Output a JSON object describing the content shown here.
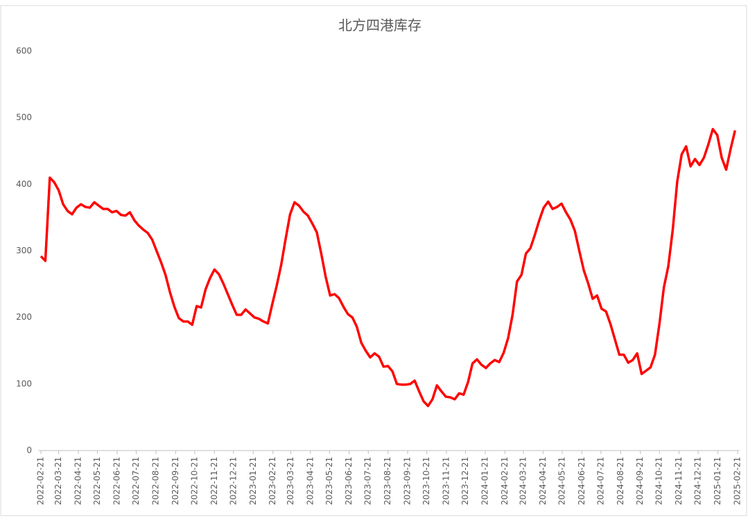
{
  "chart_data": {
    "type": "line",
    "title": "北方四港库存",
    "color": "#ff0000",
    "x": [
      "2022-02-21",
      "2022-02-28",
      "2022-03-07",
      "2022-03-14",
      "2022-03-21",
      "2022-03-28",
      "2022-04-04",
      "2022-04-11",
      "2022-04-18",
      "2022-04-25",
      "2022-05-02",
      "2022-05-09",
      "2022-05-16",
      "2022-05-23",
      "2022-05-30",
      "2022-06-06",
      "2022-06-13",
      "2022-06-20",
      "2022-06-27",
      "2022-07-04",
      "2022-07-11",
      "2022-07-18",
      "2022-07-25",
      "2022-08-01",
      "2022-08-08",
      "2022-08-15",
      "2022-08-22",
      "2022-08-29",
      "2022-09-05",
      "2022-09-12",
      "2022-09-19",
      "2022-09-26",
      "2022-10-03",
      "2022-10-10",
      "2022-10-17",
      "2022-10-24",
      "2022-10-31",
      "2022-11-07",
      "2022-11-14",
      "2022-11-21",
      "2022-11-28",
      "2022-12-05",
      "2022-12-12",
      "2022-12-19",
      "2022-12-26",
      "2023-01-02",
      "2023-01-09",
      "2023-01-16",
      "2023-01-23",
      "2023-01-30",
      "2023-02-06",
      "2023-02-13",
      "2023-02-20",
      "2023-02-27",
      "2023-03-06",
      "2023-03-13",
      "2023-03-20",
      "2023-03-27",
      "2023-04-03",
      "2023-04-10",
      "2023-04-17",
      "2023-04-24",
      "2023-05-01",
      "2023-05-08",
      "2023-05-15",
      "2023-05-22",
      "2023-05-29",
      "2023-06-05",
      "2023-06-12",
      "2023-06-19",
      "2023-06-26",
      "2023-07-03",
      "2023-07-10",
      "2023-07-17",
      "2023-07-24",
      "2023-07-31",
      "2023-08-07",
      "2023-08-14",
      "2023-08-21",
      "2023-08-28",
      "2023-09-04",
      "2023-09-11",
      "2023-09-18",
      "2023-09-25",
      "2023-10-02",
      "2023-10-09",
      "2023-10-16",
      "2023-10-23",
      "2023-10-30",
      "2023-11-06",
      "2023-11-13",
      "2023-11-20",
      "2023-11-27",
      "2023-12-04",
      "2023-12-11",
      "2023-12-18",
      "2023-12-25",
      "2024-01-01",
      "2024-01-08",
      "2024-01-15",
      "2024-01-22",
      "2024-01-29",
      "2024-02-05",
      "2024-02-12",
      "2024-02-19",
      "2024-02-26",
      "2024-03-04",
      "2024-03-11",
      "2024-03-18",
      "2024-03-25",
      "2024-04-01",
      "2024-04-08",
      "2024-04-15",
      "2024-04-22",
      "2024-04-29",
      "2024-05-06",
      "2024-05-13",
      "2024-05-20",
      "2024-05-27",
      "2024-06-03",
      "2024-06-10",
      "2024-06-17",
      "2024-06-24",
      "2024-07-01",
      "2024-07-08",
      "2024-07-15",
      "2024-07-22",
      "2024-07-29",
      "2024-08-05",
      "2024-08-12",
      "2024-08-19",
      "2024-08-26",
      "2024-09-02",
      "2024-09-09",
      "2024-09-16",
      "2024-09-23",
      "2024-09-30",
      "2024-10-07",
      "2024-10-14",
      "2024-10-21",
      "2024-10-28",
      "2024-11-04",
      "2024-11-11",
      "2024-11-18",
      "2024-11-25",
      "2024-12-02",
      "2024-12-09",
      "2024-12-16",
      "2024-12-23",
      "2024-12-30",
      "2025-01-06",
      "2025-01-13",
      "2025-01-20",
      "2025-01-27",
      "2025-02-03",
      "2025-02-10",
      "2025-02-17"
    ],
    "values": [
      292,
      285,
      410,
      403,
      391,
      370,
      360,
      355,
      365,
      370,
      366,
      365,
      373,
      368,
      363,
      363,
      358,
      360,
      354,
      353,
      358,
      346,
      338,
      332,
      327,
      317,
      300,
      283,
      264,
      238,
      216,
      199,
      194,
      194,
      189,
      217,
      215,
      242,
      259,
      272,
      265,
      251,
      235,
      219,
      204,
      204,
      212,
      206,
      200,
      198,
      194,
      191,
      220,
      248,
      279,
      318,
      355,
      373,
      368,
      359,
      353,
      341,
      328,
      296,
      261,
      233,
      235,
      229,
      216,
      205,
      200,
      186,
      162,
      150,
      140,
      146,
      141,
      126,
      127,
      119,
      100,
      99,
      99,
      100,
      105,
      89,
      74,
      67,
      77,
      98,
      89,
      81,
      80,
      77,
      86,
      84,
      103,
      131,
      137,
      129,
      124,
      131,
      136,
      133,
      147,
      169,
      204,
      254,
      264,
      296,
      304,
      324,
      346,
      365,
      374,
      363,
      366,
      371,
      358,
      347,
      330,
      300,
      271,
      251,
      228,
      233,
      213,
      209,
      190,
      167,
      144,
      144,
      132,
      136,
      146,
      115,
      120,
      125,
      144,
      190,
      245,
      277,
      332,
      404,
      445,
      457,
      427,
      438,
      429,
      440,
      460,
      483,
      474,
      440,
      422,
      453,
      481
    ],
    "xlim": [
      "2022-02-21",
      "2025-02-21"
    ],
    "xticks": [
      "2022-02-21",
      "2022-03-21",
      "2022-04-21",
      "2022-05-21",
      "2022-06-21",
      "2022-07-21",
      "2022-08-21",
      "2022-09-21",
      "2022-10-21",
      "2022-11-21",
      "2022-12-21",
      "2023-01-21",
      "2023-02-21",
      "2023-03-21",
      "2023-04-21",
      "2023-05-21",
      "2023-06-21",
      "2023-07-21",
      "2023-08-21",
      "2023-09-21",
      "2023-10-21",
      "2023-11-21",
      "2023-12-21",
      "2024-01-21",
      "2024-02-21",
      "2024-03-21",
      "2024-04-21",
      "2024-05-21",
      "2024-06-21",
      "2024-07-21",
      "2024-08-21",
      "2024-09-21",
      "2024-10-21",
      "2024-11-21",
      "2024-12-21",
      "2025-01-21",
      "2025-02-21"
    ],
    "ylim": [
      0,
      600
    ],
    "yticks": [
      0,
      100,
      200,
      300,
      400,
      500,
      600
    ],
    "grid": false
  }
}
